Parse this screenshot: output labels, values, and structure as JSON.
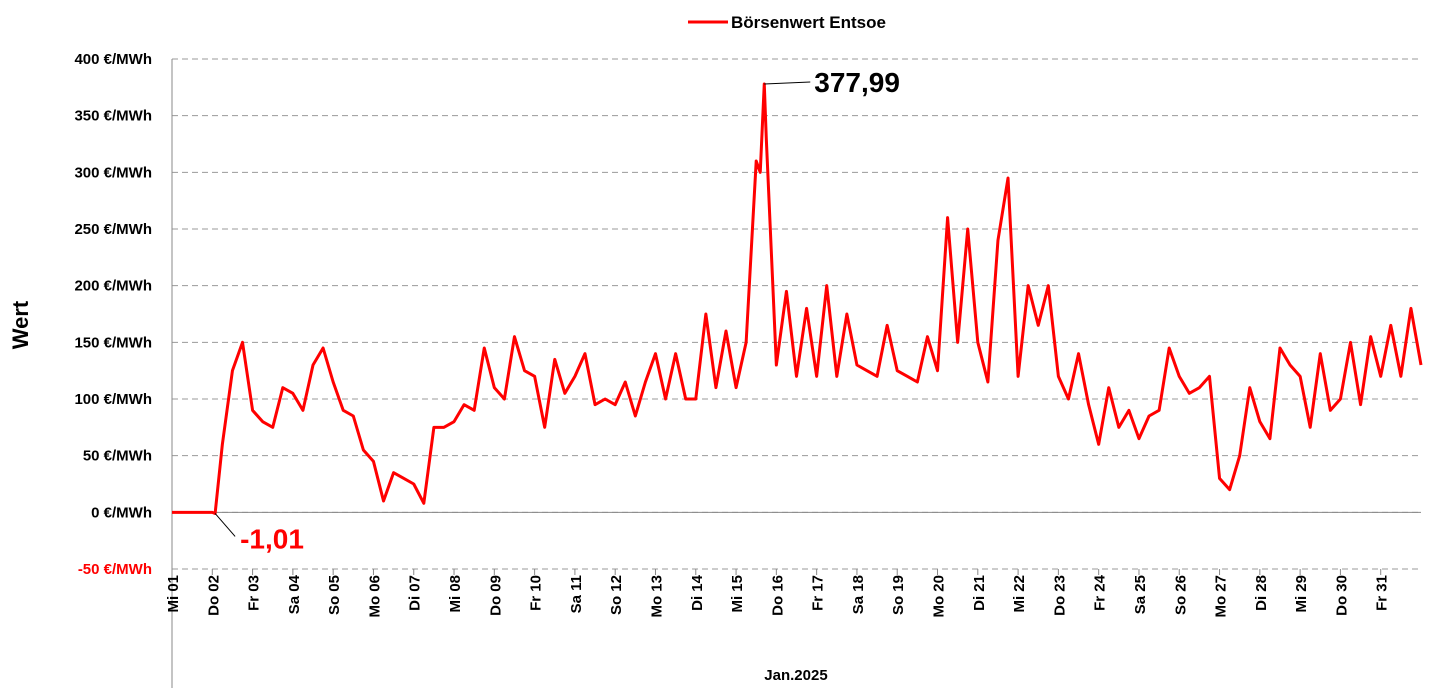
{
  "chart_data": {
    "type": "line",
    "y_label": "Wert",
    "x_label": "Jan.2025",
    "grid": true,
    "legend": "top",
    "xlim": [
      0,
      31
    ],
    "ylim": [
      -50,
      400
    ],
    "yticks": [
      {
        "value": -50,
        "label": "-50 €/MWh",
        "color": "#ff0000"
      },
      {
        "value": 0,
        "label": "0 €/MWh"
      },
      {
        "value": 50,
        "label": "50 €/MWh"
      },
      {
        "value": 100,
        "label": "100 €/MWh"
      },
      {
        "value": 150,
        "label": "150 €/MWh"
      },
      {
        "value": 200,
        "label": "200 €/MWh"
      },
      {
        "value": 250,
        "label": "250 €/MWh"
      },
      {
        "value": 300,
        "label": "300 €/MWh"
      },
      {
        "value": 350,
        "label": "350 €/MWh"
      },
      {
        "value": 400,
        "label": "400 €/MWh"
      }
    ],
    "xticks": [
      {
        "value": 0,
        "label": "Mi 01"
      },
      {
        "value": 1,
        "label": "Do 02"
      },
      {
        "value": 2,
        "label": "Fr 03"
      },
      {
        "value": 3,
        "label": "Sa 04"
      },
      {
        "value": 4,
        "label": "So 05"
      },
      {
        "value": 5,
        "label": "Mo 06"
      },
      {
        "value": 6,
        "label": "Di 07"
      },
      {
        "value": 7,
        "label": "Mi 08"
      },
      {
        "value": 8,
        "label": "Do 09"
      },
      {
        "value": 9,
        "label": "Fr 10"
      },
      {
        "value": 10,
        "label": "Sa 11"
      },
      {
        "value": 11,
        "label": "So 12"
      },
      {
        "value": 12,
        "label": "Mo 13"
      },
      {
        "value": 13,
        "label": "Di 14"
      },
      {
        "value": 14,
        "label": "Mi 15"
      },
      {
        "value": 15,
        "label": "Do 16"
      },
      {
        "value": 16,
        "label": "Fr 17"
      },
      {
        "value": 17,
        "label": "Sa 18"
      },
      {
        "value": 18,
        "label": "So 19"
      },
      {
        "value": 19,
        "label": "Mo 20"
      },
      {
        "value": 20,
        "label": "Di 21"
      },
      {
        "value": 21,
        "label": "Mi 22"
      },
      {
        "value": 22,
        "label": "Do 23"
      },
      {
        "value": 23,
        "label": "Fr 24"
      },
      {
        "value": 24,
        "label": "Sa 25"
      },
      {
        "value": 25,
        "label": "So 26"
      },
      {
        "value": 26,
        "label": "Mo 27"
      },
      {
        "value": 27,
        "label": "Di 28"
      },
      {
        "value": 28,
        "label": "Mi 29"
      },
      {
        "value": 29,
        "label": "Do 30"
      },
      {
        "value": 30,
        "label": "Fr 31"
      }
    ],
    "x": [
      0,
      0.25,
      0.5,
      0.75,
      1,
      1.07,
      1.25,
      1.5,
      1.75,
      2,
      2.25,
      2.5,
      2.75,
      3,
      3.25,
      3.5,
      3.75,
      4,
      4.25,
      4.5,
      4.75,
      5,
      5.25,
      5.5,
      5.75,
      6,
      6.25,
      6.5,
      6.75,
      7,
      7.25,
      7.5,
      7.75,
      8,
      8.25,
      8.5,
      8.75,
      9,
      9.25,
      9.5,
      9.75,
      10,
      10.25,
      10.5,
      10.75,
      11,
      11.25,
      11.5,
      11.75,
      12,
      12.25,
      12.5,
      12.75,
      13,
      13.25,
      13.5,
      13.75,
      14,
      14.25,
      14.5,
      14.6,
      14.7,
      14.75,
      15,
      15.25,
      15.5,
      15.75,
      16,
      16.25,
      16.5,
      16.75,
      17,
      17.25,
      17.5,
      17.75,
      18,
      18.25,
      18.5,
      18.75,
      19,
      19.25,
      19.5,
      19.75,
      20,
      20.25,
      20.5,
      20.75,
      21,
      21.25,
      21.5,
      21.75,
      22,
      22.25,
      22.5,
      22.75,
      23,
      23.25,
      23.5,
      23.75,
      24,
      24.25,
      24.5,
      24.75,
      25,
      25.25,
      25.5,
      25.75,
      26,
      26.25,
      26.5,
      26.75,
      27,
      27.25,
      27.5,
      27.75,
      28,
      28.25,
      28.5,
      28.75,
      29,
      29.25,
      29.5,
      29.75,
      30,
      30.25,
      30.5,
      30.75,
      31
    ],
    "series": [
      {
        "name": "Börsenwert Entsoe",
        "color": "#ff0000",
        "values": [
          0,
          0,
          0,
          0,
          0,
          -1.01,
          60,
          125,
          150,
          90,
          80,
          75,
          110,
          105,
          90,
          130,
          145,
          115,
          90,
          85,
          55,
          45,
          10,
          35,
          30,
          25,
          8,
          75,
          75,
          80,
          95,
          90,
          145,
          110,
          100,
          155,
          125,
          120,
          75,
          135,
          105,
          120,
          140,
          95,
          100,
          95,
          115,
          85,
          115,
          140,
          100,
          140,
          100,
          100,
          175,
          110,
          160,
          110,
          150,
          310,
          300,
          377.99,
          330,
          130,
          195,
          120,
          180,
          120,
          200,
          120,
          175,
          130,
          125,
          120,
          165,
          125,
          120,
          115,
          155,
          125,
          260,
          150,
          250,
          150,
          115,
          240,
          295,
          120,
          200,
          165,
          200,
          120,
          100,
          140,
          95,
          60,
          110,
          75,
          90,
          65,
          85,
          90,
          145,
          120,
          105,
          110,
          120,
          30,
          20,
          50,
          110,
          80,
          65,
          145,
          130,
          120,
          75,
          140,
          90,
          100,
          150,
          95,
          155,
          120,
          165,
          120,
          180,
          130
        ]
      }
    ],
    "annotations": [
      {
        "text": "377,99",
        "x": 14.7,
        "y": 377.99,
        "color": "#000000"
      },
      {
        "text": "-1,01",
        "x": 1.07,
        "y": -1.01,
        "color": "#ff0000"
      }
    ]
  }
}
